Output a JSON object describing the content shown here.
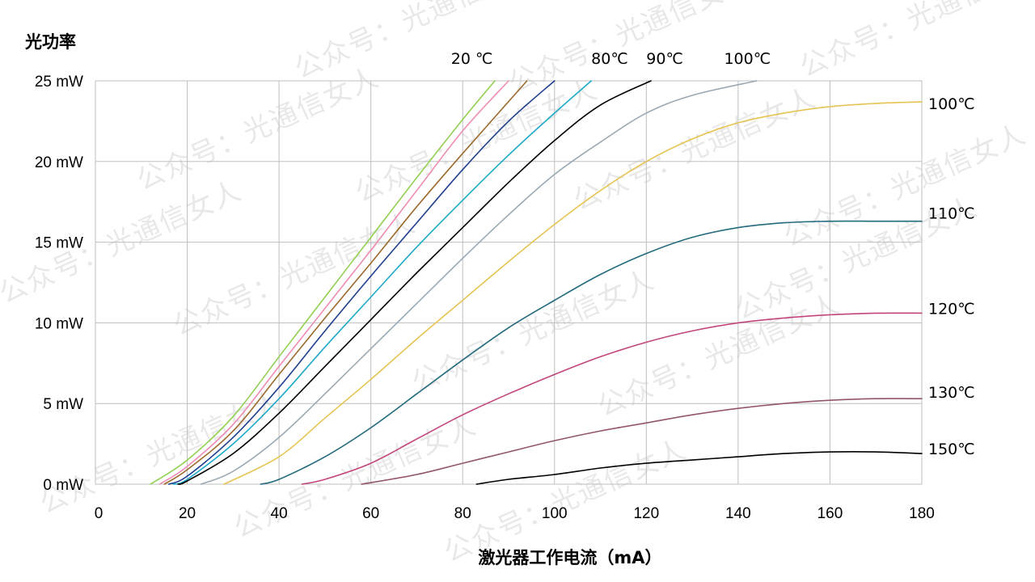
{
  "watermark": "公众号：光通信女人",
  "chart_data": {
    "type": "line",
    "ylabel": "光功率",
    "xlabel": "激光器工作电流（mA）",
    "xlim": [
      0,
      180
    ],
    "ylim": [
      0,
      25
    ],
    "xticks": [
      "0",
      "20",
      "40",
      "60",
      "80",
      "100",
      "120",
      "140",
      "160",
      "180"
    ],
    "yticks": [
      "0 mW",
      "5 mW",
      "10 mW",
      "15 mW",
      "20 mW",
      "25 mW"
    ],
    "grid": true,
    "top_labels": [
      {
        "text": "20 ℃",
        "x": 82
      },
      {
        "text": "80℃",
        "x": 112
      },
      {
        "text": "90℃",
        "x": 124
      },
      {
        "text": "100℃",
        "x": 142
      }
    ],
    "series": [
      {
        "color": "#92d050",
        "x": [
          12,
          20,
          30,
          40,
          50,
          60,
          70,
          80,
          87
        ],
        "y": [
          0,
          1.5,
          4.2,
          7.9,
          11.6,
          15.3,
          19.0,
          22.6,
          25
        ]
      },
      {
        "color": "#f08cb4",
        "x": [
          14,
          20,
          30,
          40,
          50,
          60,
          70,
          80,
          90
        ],
        "y": [
          0,
          1.1,
          3.7,
          7.3,
          10.9,
          14.5,
          18.2,
          21.9,
          25
        ]
      },
      {
        "color": "#9c6a2c",
        "x": [
          15,
          20,
          30,
          40,
          50,
          60,
          70,
          80,
          94
        ],
        "y": [
          0,
          0.9,
          3.3,
          6.8,
          10.3,
          13.7,
          17.2,
          20.5,
          25
        ]
      },
      {
        "color": "#1f3f8f",
        "x": [
          16,
          20,
          30,
          40,
          50,
          60,
          70,
          80,
          90,
          100
        ],
        "y": [
          0,
          0.5,
          2.9,
          6.0,
          9.5,
          12.9,
          16.2,
          19.5,
          22.5,
          25
        ]
      },
      {
        "color": "#1fa9c9",
        "x": [
          17,
          20,
          30,
          40,
          50,
          60,
          70,
          80,
          90,
          100,
          108
        ],
        "y": [
          0,
          0.3,
          2.5,
          5.3,
          8.5,
          11.6,
          14.7,
          17.6,
          20.4,
          23.0,
          25
        ]
      },
      {
        "color": "#000000",
        "x": [
          18,
          20,
          30,
          40,
          50,
          60,
          70,
          80,
          90,
          100,
          110,
          121
        ],
        "y": [
          0,
          0.2,
          1.9,
          4.4,
          7.3,
          10.2,
          13.1,
          15.9,
          18.7,
          21.3,
          23.5,
          25
        ]
      },
      {
        "color": "#9aa9b3",
        "x": [
          23,
          30,
          40,
          50,
          60,
          70,
          80,
          90,
          100,
          110,
          120,
          130,
          144
        ],
        "y": [
          0,
          0.8,
          2.9,
          5.6,
          8.4,
          11.2,
          14.0,
          16.7,
          19.2,
          21.2,
          23.0,
          24.1,
          25
        ]
      },
      {
        "color": "#e6c453",
        "x": [
          28,
          40,
          50,
          60,
          70,
          80,
          90,
          100,
          110,
          120,
          130,
          140,
          150,
          160,
          170,
          180
        ],
        "y": [
          0,
          1.7,
          4.1,
          6.5,
          9.0,
          11.4,
          13.8,
          16.1,
          18.2,
          20.0,
          21.4,
          22.4,
          23.0,
          23.4,
          23.6,
          23.7
        ]
      },
      {
        "color": "#226a7d",
        "x": [
          36,
          40,
          50,
          60,
          70,
          80,
          90,
          100,
          110,
          120,
          130,
          140,
          150,
          160,
          170,
          180
        ],
        "y": [
          0,
          0.3,
          1.7,
          3.5,
          5.6,
          7.7,
          9.7,
          11.4,
          13.0,
          14.3,
          15.3,
          15.9,
          16.2,
          16.3,
          16.3,
          16.3
        ]
      },
      {
        "color": "#c2467c",
        "x": [
          45,
          50,
          60,
          70,
          80,
          90,
          100,
          110,
          120,
          130,
          140,
          150,
          160,
          170,
          180
        ],
        "y": [
          0,
          0.3,
          1.3,
          2.8,
          4.3,
          5.6,
          6.8,
          7.9,
          8.8,
          9.5,
          10.0,
          10.3,
          10.5,
          10.6,
          10.6
        ]
      },
      {
        "color": "#94566a",
        "x": [
          58,
          70,
          80,
          90,
          100,
          110,
          120,
          130,
          140,
          150,
          160,
          170,
          180
        ],
        "y": [
          0,
          0.6,
          1.3,
          2.0,
          2.7,
          3.3,
          3.8,
          4.3,
          4.7,
          5.0,
          5.2,
          5.3,
          5.3
        ]
      },
      {
        "color": "#000000",
        "x": [
          83,
          90,
          100,
          110,
          120,
          130,
          140,
          150,
          160,
          170,
          180
        ],
        "y": [
          0,
          0.3,
          0.6,
          1.0,
          1.3,
          1.5,
          1.7,
          1.9,
          2.0,
          2.0,
          1.9
        ]
      }
    ],
    "right_labels": [
      {
        "text": "100℃",
        "y": 23.4
      },
      {
        "text": "110℃",
        "y": 16.6
      },
      {
        "text": "120℃",
        "y": 10.7
      },
      {
        "text": "130℃",
        "y": 5.5
      },
      {
        "text": "150℃",
        "y": 2.0
      }
    ]
  }
}
